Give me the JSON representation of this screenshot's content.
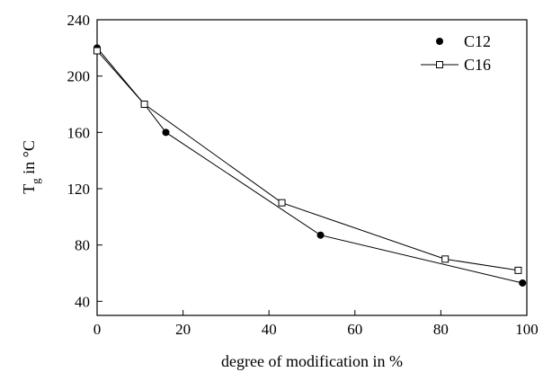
{
  "chart_data": {
    "type": "line",
    "xlabel": "degree of modification in %",
    "ylabel": {
      "main": "T",
      "sub": "g",
      "rest": " in °C"
    },
    "xlim": [
      0,
      100
    ],
    "ylim": [
      30,
      240
    ],
    "xticks": [
      0,
      20,
      40,
      60,
      80,
      100
    ],
    "yticks": [
      40,
      80,
      120,
      160,
      200,
      240
    ],
    "xtick_labels": [
      "0",
      "20",
      "40",
      "60",
      "80",
      "100"
    ],
    "ytick_labels": [
      "40",
      "80",
      "120",
      "160",
      "200",
      "240"
    ],
    "grid": false,
    "legend_position": "top-right",
    "series": [
      {
        "name": "C12",
        "marker": "filled-circle",
        "x": [
          0,
          11,
          16,
          52,
          99
        ],
        "y": [
          220,
          180,
          160,
          87,
          53
        ]
      },
      {
        "name": "C16",
        "marker": "open-square",
        "x": [
          0,
          11,
          43,
          81,
          98
        ],
        "y": [
          218,
          180,
          110,
          70,
          62
        ]
      }
    ]
  }
}
